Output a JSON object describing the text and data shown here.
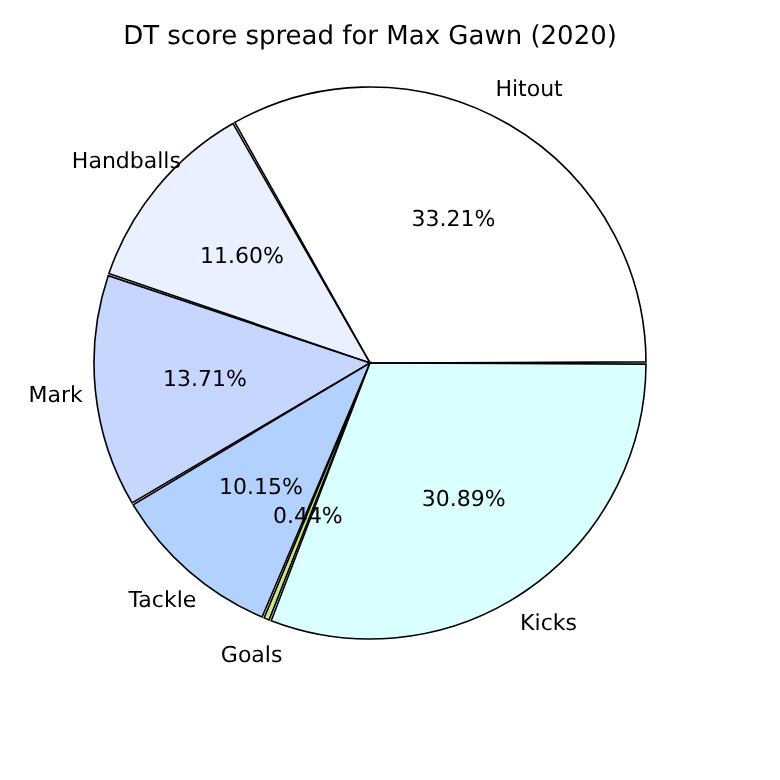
{
  "chart_data": {
    "type": "pie",
    "title": "DT score spread for Max Gawn (2020)",
    "categories": [
      "Hitout",
      "Handballs",
      "Mark",
      "Tackle",
      "Goals",
      "Kicks"
    ],
    "values": [
      33.21,
      11.6,
      13.71,
      10.15,
      0.44,
      30.89
    ],
    "value_labels": [
      "33.21%",
      "11.60%",
      "13.71%",
      "10.15%",
      "0.44%",
      "30.89%"
    ],
    "colors": [
      "#ffffff",
      "#eaf0ff",
      "#c6d6ff",
      "#b3d1ff",
      "#cce88a",
      "#d9ffff"
    ],
    "legend": false
  }
}
